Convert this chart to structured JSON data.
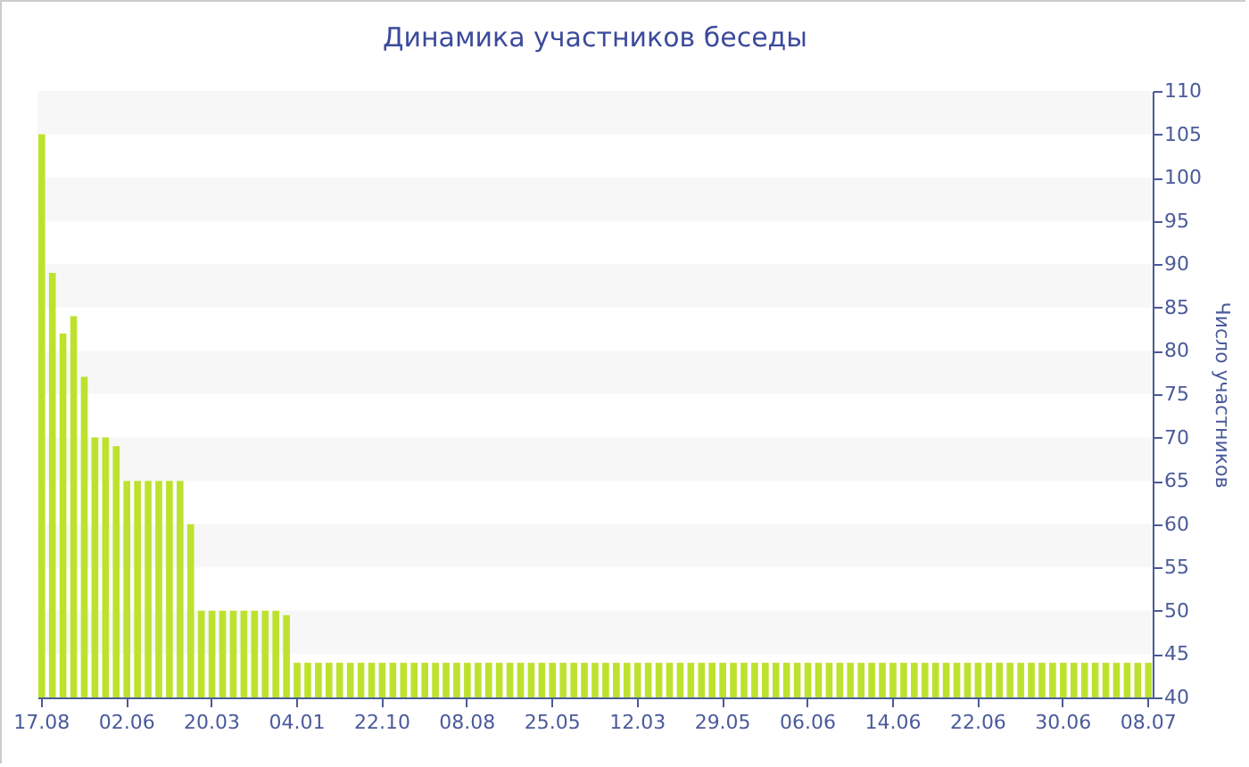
{
  "chart_data": {
    "type": "bar",
    "title": "Динамика участников беседы",
    "ylabel": "Число участников",
    "categories": [
      "17.08",
      null,
      null,
      null,
      null,
      null,
      null,
      null,
      "02.06",
      null,
      null,
      null,
      null,
      null,
      null,
      null,
      "20.03",
      null,
      null,
      null,
      null,
      null,
      null,
      null,
      "04.01",
      null,
      null,
      null,
      null,
      null,
      null,
      null,
      "22.10",
      null,
      null,
      null,
      null,
      null,
      null,
      null,
      "08.08",
      null,
      null,
      null,
      null,
      null,
      null,
      null,
      "25.05",
      null,
      null,
      null,
      null,
      null,
      null,
      null,
      "12.03",
      null,
      null,
      null,
      null,
      null,
      null,
      null,
      "29.05",
      null,
      null,
      null,
      null,
      null,
      null,
      null,
      "06.06",
      null,
      null,
      null,
      null,
      null,
      null,
      null,
      "14.06",
      null,
      null,
      null,
      null,
      null,
      null,
      null,
      "22.06",
      null,
      null,
      null,
      null,
      null,
      null,
      null,
      "30.06",
      null,
      null,
      null,
      null,
      null,
      null,
      null,
      "08.07"
    ],
    "values": [
      105,
      89,
      82,
      84,
      77,
      70,
      70,
      69,
      65,
      65,
      65,
      65,
      65,
      65,
      60,
      50,
      50,
      50,
      50,
      50,
      50,
      50,
      50,
      49.5,
      44,
      44,
      44,
      44,
      44,
      44,
      44,
      44,
      44,
      44,
      44,
      44,
      44,
      44,
      44,
      44,
      44,
      44,
      44,
      44,
      44,
      44,
      44,
      44,
      44,
      44,
      44,
      44,
      44,
      44,
      44,
      44,
      44,
      44,
      44,
      44,
      44,
      44,
      44,
      44,
      44,
      44,
      44,
      44,
      44,
      44,
      44,
      44,
      44,
      44,
      44,
      44,
      44,
      44,
      44,
      44,
      44,
      44,
      44,
      44,
      44,
      44,
      44,
      44,
      44,
      44,
      44,
      44,
      44,
      44,
      44,
      44,
      44,
      44,
      44,
      44,
      44,
      44,
      44,
      44,
      44
    ],
    "color": "#bde22e",
    "ylim": [
      40,
      110
    ],
    "yticks": [
      40,
      45,
      50,
      55,
      60,
      65,
      70,
      75,
      80,
      85,
      90,
      95,
      100,
      105,
      110
    ],
    "bands": [
      {
        "axis": "y",
        "from": 45,
        "to": 50,
        "color": "#f7f7f7"
      },
      {
        "axis": "y",
        "from": 55,
        "to": 60,
        "color": "#f7f7f7"
      },
      {
        "axis": "y",
        "from": 65,
        "to": 70,
        "color": "#f7f7f7"
      },
      {
        "axis": "y",
        "from": 75,
        "to": 80,
        "color": "#f7f7f7"
      },
      {
        "axis": "y",
        "from": 85,
        "to": 90,
        "color": "#f7f7f7"
      },
      {
        "axis": "y",
        "from": 95,
        "to": 100,
        "color": "#f7f7f7"
      },
      {
        "axis": "y",
        "from": 105,
        "to": 110,
        "color": "#f7f7f7"
      }
    ]
  }
}
